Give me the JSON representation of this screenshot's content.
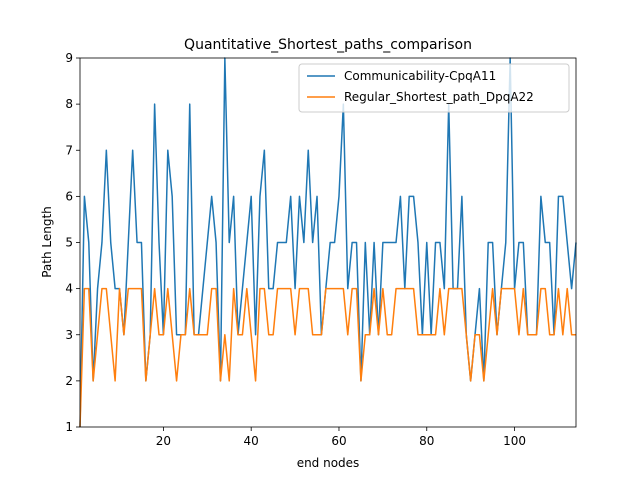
{
  "chart_data": {
    "type": "line",
    "title": "Quantitative_Shortest_paths_comparison",
    "xlabel": "end nodes",
    "ylabel": "Path Length",
    "xlim": [
      1,
      114
    ],
    "ylim": [
      1,
      9
    ],
    "xticks": [
      20,
      40,
      60,
      80,
      100
    ],
    "yticks": [
      1,
      2,
      3,
      4,
      5,
      6,
      7,
      8,
      9
    ],
    "grid": false,
    "legend_position": "upper right",
    "x": [
      1,
      2,
      3,
      4,
      5,
      6,
      7,
      8,
      9,
      10,
      11,
      12,
      13,
      14,
      15,
      16,
      17,
      18,
      19,
      20,
      21,
      22,
      23,
      24,
      25,
      26,
      27,
      28,
      29,
      30,
      31,
      32,
      33,
      34,
      35,
      36,
      37,
      38,
      39,
      40,
      41,
      42,
      43,
      44,
      45,
      46,
      47,
      48,
      49,
      50,
      51,
      52,
      53,
      54,
      55,
      56,
      57,
      58,
      59,
      60,
      61,
      62,
      63,
      64,
      65,
      66,
      67,
      68,
      69,
      70,
      71,
      72,
      73,
      74,
      75,
      76,
      77,
      78,
      79,
      80,
      81,
      82,
      83,
      84,
      85,
      86,
      87,
      88,
      89,
      90,
      91,
      92,
      93,
      94,
      95,
      96,
      97,
      98,
      99,
      100,
      101,
      102,
      103,
      104,
      105,
      106,
      107,
      108,
      109,
      110,
      111,
      112,
      113,
      114
    ],
    "series": [
      {
        "name": "Communicability-CpqA11",
        "color": "#1f77b4",
        "values": [
          1,
          6,
          5,
          2,
          4,
          5,
          7,
          5,
          4,
          4,
          3,
          5,
          7,
          5,
          5,
          2,
          3,
          8,
          5,
          3,
          7,
          6,
          3,
          3,
          3,
          8,
          3,
          3,
          4,
          5,
          6,
          5,
          2,
          9,
          5,
          6,
          3,
          4,
          5,
          6,
          3,
          6,
          7,
          4,
          4,
          5,
          5,
          5,
          6,
          4,
          6,
          5,
          7,
          5,
          6,
          3,
          4,
          5,
          5,
          6,
          8,
          4,
          5,
          5,
          2,
          5,
          3,
          5,
          3,
          5,
          5,
          5,
          5,
          6,
          4,
          6,
          6,
          5,
          3,
          5,
          3,
          5,
          5,
          4,
          8,
          4,
          4,
          6,
          3,
          2,
          3,
          4,
          2,
          5,
          5,
          3,
          4,
          5,
          9,
          4,
          5,
          5,
          3,
          3,
          3,
          6,
          5,
          5,
          3,
          6,
          6,
          5,
          4,
          5
        ]
      },
      {
        "name": "Regular_Shortest_path_DpqA22",
        "color": "#ff7f0e",
        "values": [
          1,
          4,
          4,
          2,
          3,
          4,
          4,
          3,
          2,
          4,
          3,
          4,
          4,
          4,
          4,
          2,
          3,
          4,
          3,
          3,
          4,
          3,
          2,
          3,
          3,
          4,
          3,
          3,
          3,
          3,
          4,
          4,
          2,
          3,
          2,
          4,
          3,
          3,
          4,
          3,
          2,
          4,
          4,
          3,
          3,
          4,
          4,
          4,
          4,
          3,
          4,
          4,
          4,
          3,
          3,
          3,
          4,
          4,
          4,
          4,
          4,
          3,
          4,
          4,
          2,
          3,
          3,
          4,
          3,
          4,
          3,
          3,
          4,
          4,
          4,
          4,
          4,
          3,
          3,
          3,
          3,
          3,
          4,
          3,
          4,
          4,
          4,
          4,
          3,
          2,
          3,
          3,
          2,
          3,
          4,
          3,
          4,
          4,
          4,
          4,
          3,
          4,
          3,
          3,
          3,
          4,
          4,
          3,
          3,
          4,
          3,
          4,
          3,
          3
        ]
      }
    ]
  }
}
